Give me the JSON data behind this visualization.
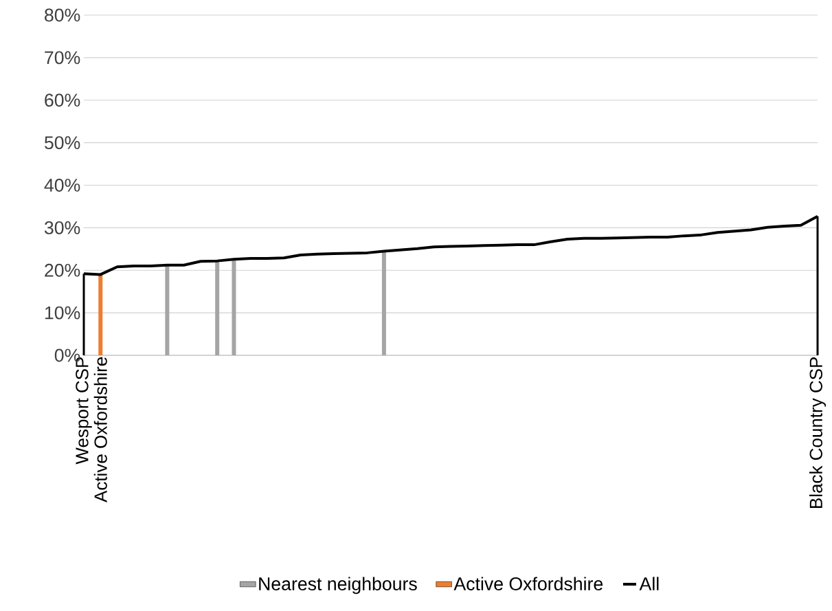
{
  "chart_data": {
    "type": "bar",
    "categories": [
      "Wesport CSP",
      "Active Oxfordshire",
      null,
      null,
      null,
      null,
      null,
      null,
      null,
      null,
      null,
      null,
      null,
      null,
      null,
      null,
      null,
      null,
      null,
      null,
      null,
      null,
      null,
      null,
      null,
      null,
      null,
      null,
      null,
      null,
      null,
      null,
      null,
      null,
      null,
      null,
      null,
      null,
      null,
      null,
      null,
      null,
      null,
      null,
      "Black Country CSP"
    ],
    "series": [
      {
        "name": "Nearest neighbours",
        "type": "bar",
        "color": "#a5a5a5",
        "values": [
          null,
          null,
          null,
          null,
          null,
          21.2,
          null,
          null,
          22.2,
          22.6,
          null,
          null,
          null,
          null,
          null,
          null,
          null,
          null,
          24.5,
          null,
          null,
          null,
          null,
          null,
          null,
          null,
          null,
          null,
          null,
          null,
          null,
          null,
          null,
          null,
          null,
          null,
          null,
          null,
          null,
          null,
          null,
          null,
          null,
          null,
          null
        ]
      },
      {
        "name": "Active Oxfordshire",
        "type": "bar",
        "color": "#ed7d31",
        "values": [
          null,
          19.0,
          null,
          null,
          null,
          null,
          null,
          null,
          null,
          null,
          null,
          null,
          null,
          null,
          null,
          null,
          null,
          null,
          null,
          null,
          null,
          null,
          null,
          null,
          null,
          null,
          null,
          null,
          null,
          null,
          null,
          null,
          null,
          null,
          null,
          null,
          null,
          null,
          null,
          null,
          null,
          null,
          null,
          null,
          null
        ]
      },
      {
        "color": "#000000",
        "values": [
          19.2,
          null,
          null,
          null,
          null,
          null,
          null,
          null,
          null,
          null,
          null,
          null,
          null,
          null,
          null,
          null,
          null,
          null,
          null,
          null,
          null,
          null,
          null,
          null,
          null,
          null,
          null,
          null,
          null,
          null,
          null,
          null,
          null,
          null,
          null,
          null,
          null,
          null,
          null,
          null,
          null,
          null,
          null,
          null,
          32.7
        ]
      },
      {
        "name": "All",
        "type": "line",
        "color": "#000000",
        "values": [
          19.2,
          19.0,
          20.8,
          21.0,
          21.0,
          21.2,
          21.2,
          22.1,
          22.2,
          22.6,
          22.8,
          22.8,
          22.9,
          23.6,
          23.8,
          23.9,
          24.0,
          24.1,
          24.5,
          24.8,
          25.1,
          25.5,
          25.6,
          25.7,
          25.8,
          25.9,
          26.0,
          26.0,
          26.7,
          27.3,
          27.5,
          27.5,
          27.6,
          27.7,
          27.8,
          27.8,
          28.1,
          28.3,
          28.9,
          29.2,
          29.5,
          30.1,
          30.4,
          30.6,
          32.7
        ]
      }
    ],
    "ylim": [
      0,
      80
    ],
    "yticks": [
      {
        "value": 0,
        "label": "0%"
      },
      {
        "value": 10,
        "label": "10%"
      },
      {
        "value": 20,
        "label": "20%"
      },
      {
        "value": 30,
        "label": "30%"
      },
      {
        "value": 40,
        "label": "40%"
      },
      {
        "value": 50,
        "label": "50%"
      },
      {
        "value": 60,
        "label": "60%"
      },
      {
        "value": 70,
        "label": "70%"
      },
      {
        "value": 80,
        "label": "80%"
      }
    ],
    "grid": "y",
    "legend": "bottom",
    "marker": "none"
  }
}
